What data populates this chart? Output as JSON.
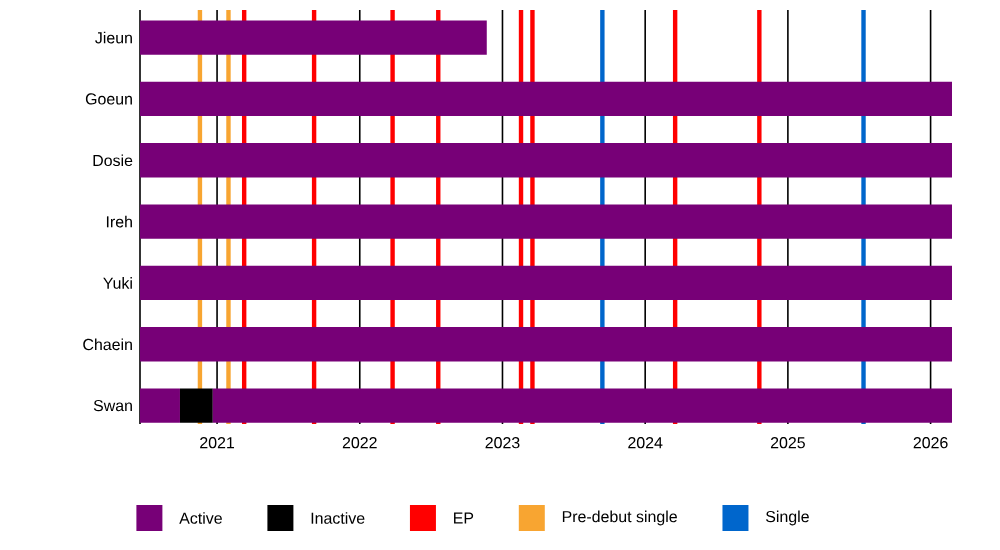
{
  "chart_data": {
    "type": "bar",
    "orientation": "horizontal",
    "categories": [
      "Jieun",
      "Goeun",
      "Dosie",
      "Ireh",
      "Yuki",
      "Chaein",
      "Swan"
    ],
    "series": [
      {
        "name": "Active",
        "color": "#770077",
        "base": [
          2020.46,
          2020.46,
          2020.46,
          2020.46,
          2020.46,
          2020.46,
          2020.46
        ],
        "values": [
          2.43,
          5.69,
          5.69,
          5.69,
          5.69,
          5.69,
          0.28
        ]
      },
      {
        "name": "Inactive",
        "color": "#000000",
        "base": [
          null,
          null,
          null,
          null,
          null,
          null,
          2020.74
        ],
        "values": [
          null,
          null,
          null,
          null,
          null,
          null,
          0.23
        ]
      },
      {
        "color": "#770077",
        "base": [
          null,
          null,
          null,
          null,
          null,
          null,
          2020.97
        ],
        "values": [
          null,
          null,
          null,
          null,
          null,
          null,
          5.18
        ]
      }
    ],
    "xlim": [
      2020.46,
      2026.15
    ],
    "xticks": [
      2021,
      2022,
      2023,
      2024,
      2025,
      2026
    ],
    "grid": "x",
    "legend": "bottom",
    "ref_lines": [
      {
        "axis": "x",
        "value": 2021.19,
        "color": "#ff0000",
        "label": "EP"
      },
      {
        "axis": "x",
        "value": 2021.68,
        "color": "#ff0000"
      },
      {
        "axis": "x",
        "value": 2022.23,
        "color": "#ff0000"
      },
      {
        "axis": "x",
        "value": 2022.55,
        "color": "#ff0000"
      },
      {
        "axis": "x",
        "value": 2023.13,
        "color": "#ff0000"
      },
      {
        "axis": "x",
        "value": 2023.21,
        "color": "#ff0000"
      },
      {
        "axis": "x",
        "value": 2024.21,
        "color": "#ff0000"
      },
      {
        "axis": "x",
        "value": 2024.8,
        "color": "#ff0000"
      },
      {
        "axis": "x",
        "value": 2020.88,
        "color": "#f8a531",
        "label": "Pre-debut single"
      },
      {
        "axis": "x",
        "value": 2021.08,
        "color": "#f8a531"
      },
      {
        "axis": "x",
        "value": 2023.7,
        "color": "#0066cc",
        "label": "Single"
      },
      {
        "axis": "x",
        "value": 2025.53,
        "color": "#0066cc"
      }
    ]
  }
}
